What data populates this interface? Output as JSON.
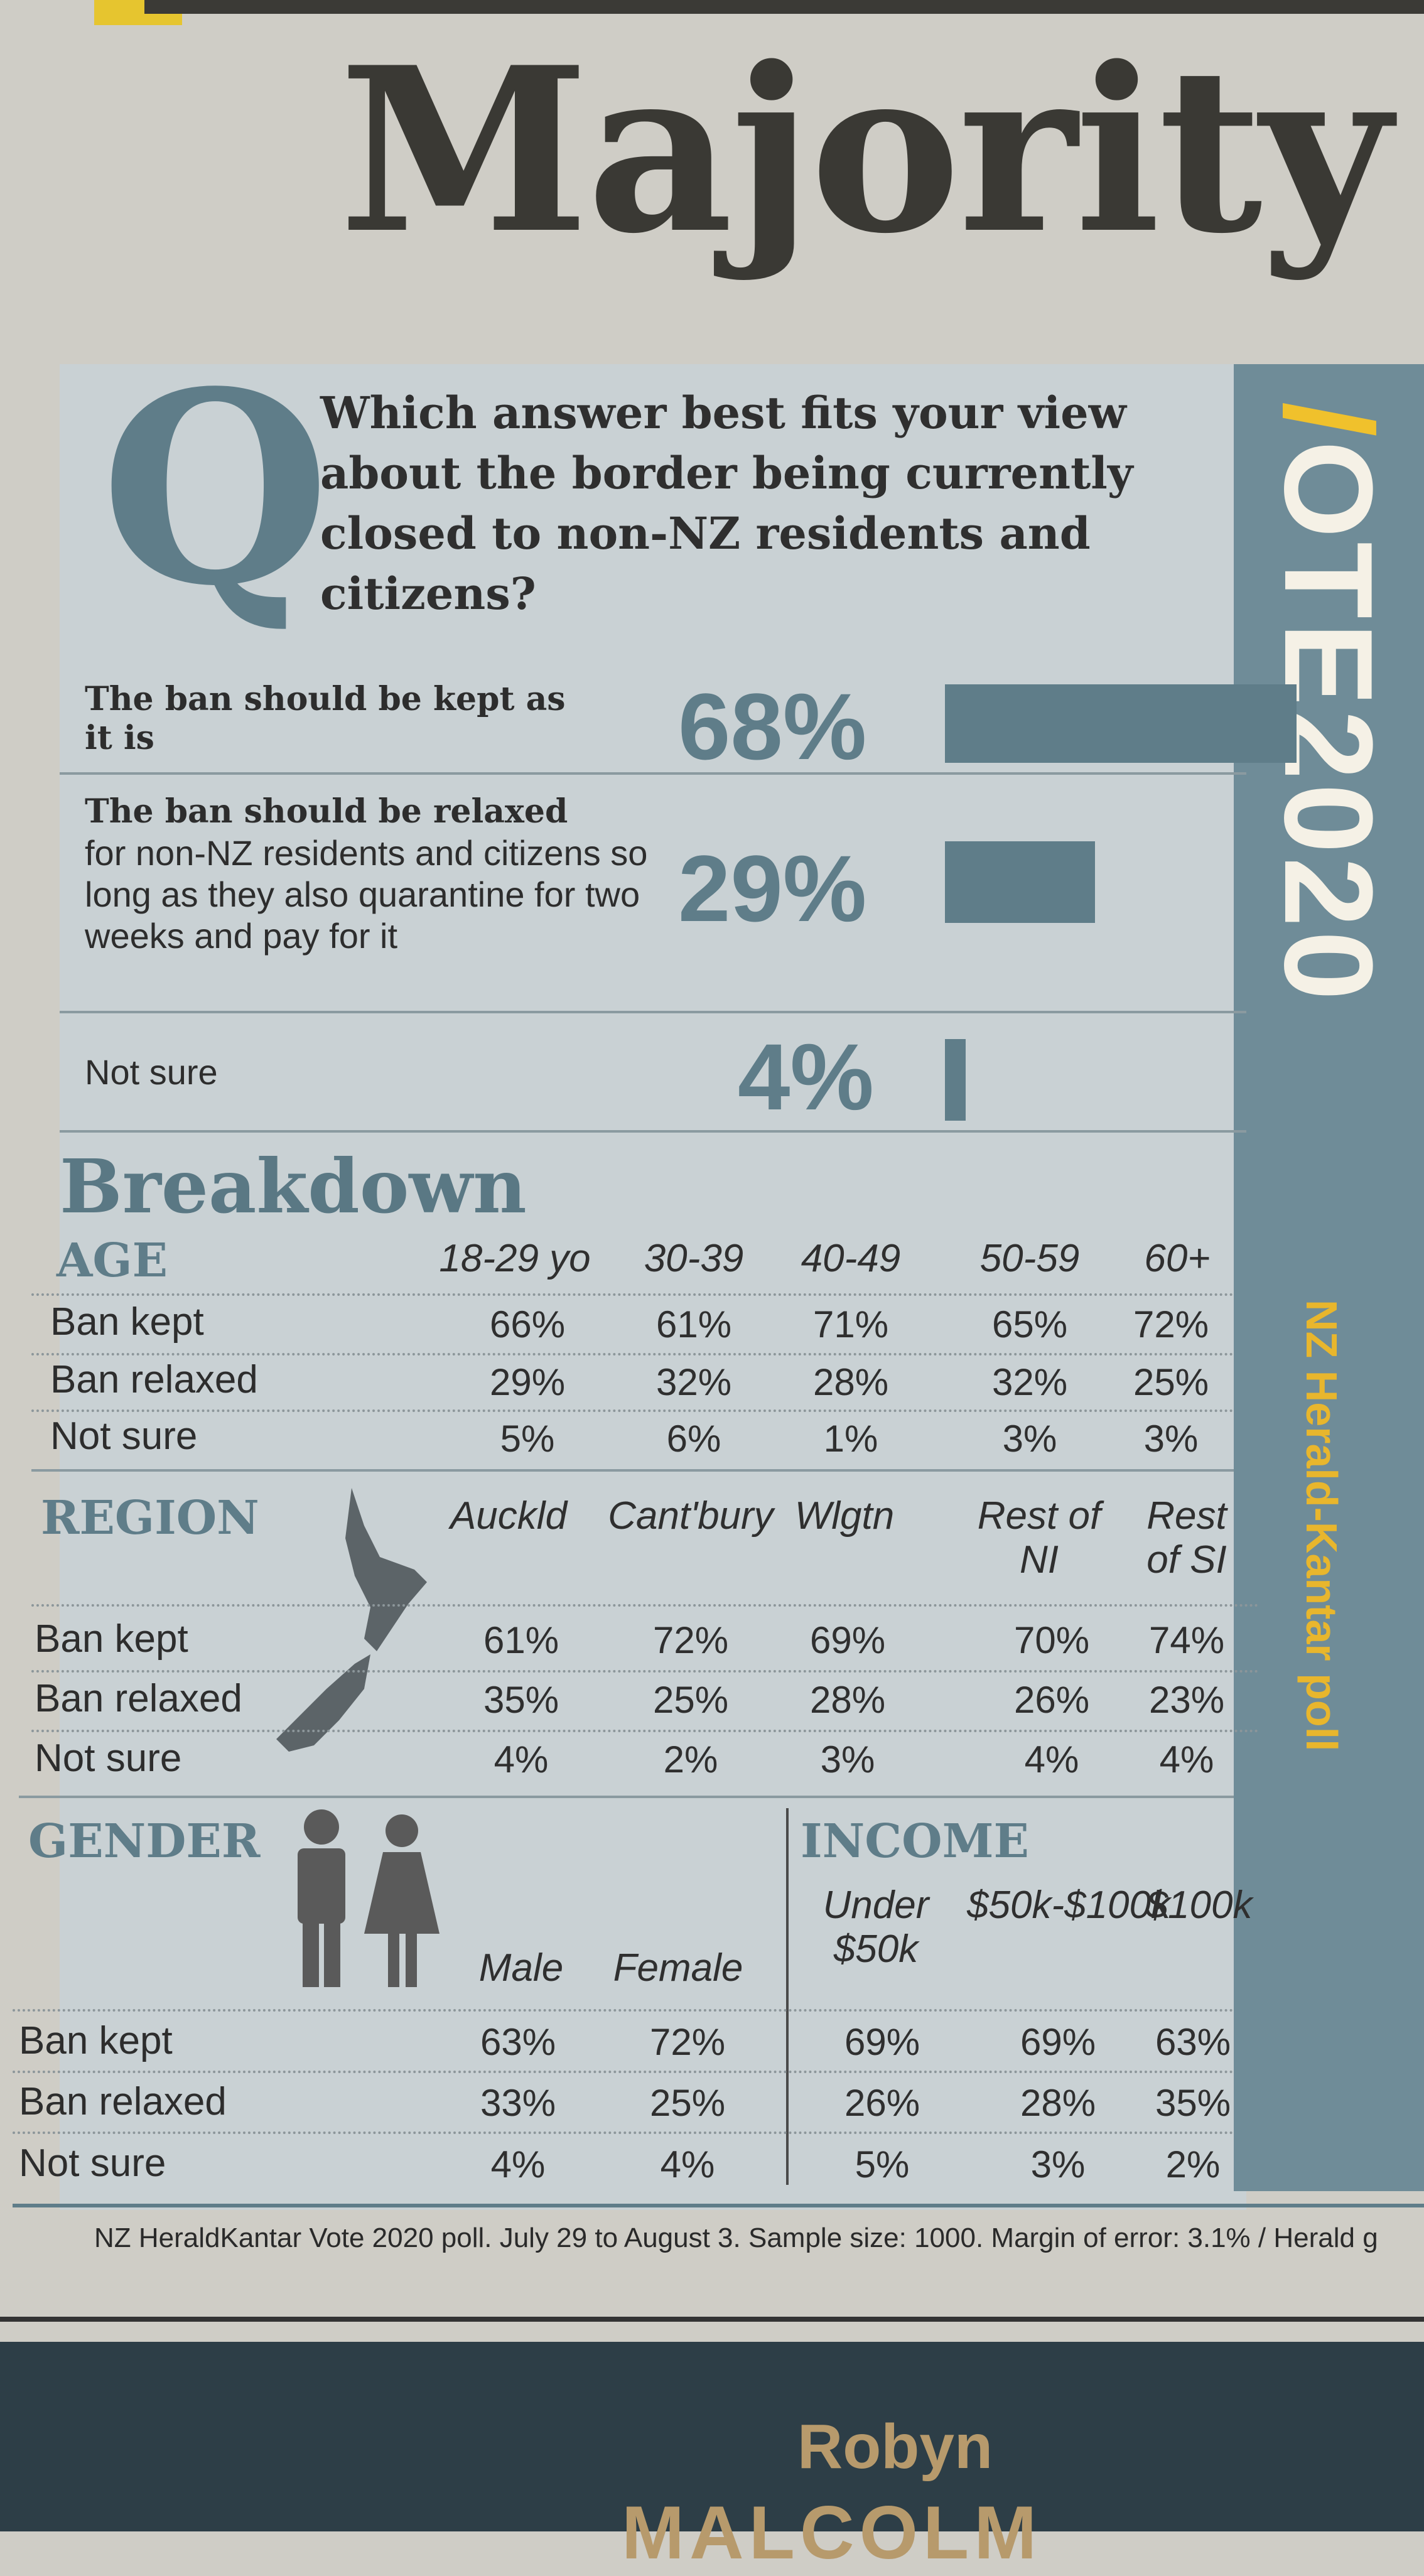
{
  "headline": "Majority",
  "question": {
    "letter": "Q",
    "text": "Which answer best fits your view about the border being currently closed to non-NZ residents and citizens?"
  },
  "answers": [
    {
      "bold": "The ban should be kept as it is",
      "rest": "",
      "pct": "68%",
      "value": 68
    },
    {
      "bold": "The ban should be relaxed",
      "rest": "for non-NZ residents and citizens so long as they also quarantine for two weeks and pay for it",
      "pct": "29%",
      "value": 29
    },
    {
      "bold": "",
      "rest": "Not sure",
      "pct": "4%",
      "value": 4
    }
  ],
  "sidebar": {
    "title_slash": "/",
    "title_rest": "OTE2020",
    "poll": "NZ Herald-Kantar poll"
  },
  "breakdown_title": "Breakdown",
  "row_labels": [
    "Ban kept",
    "Ban relaxed",
    "Not sure"
  ],
  "age": {
    "title": "AGE",
    "columns": [
      "18-29 yo",
      "30-39",
      "40-49",
      "50-59",
      "60+"
    ],
    "rows": [
      [
        "66%",
        "61%",
        "71%",
        "65%",
        "72%"
      ],
      [
        "29%",
        "32%",
        "28%",
        "32%",
        "25%"
      ],
      [
        "5%",
        "6%",
        "1%",
        "3%",
        "3%"
      ]
    ]
  },
  "region": {
    "title": "REGION",
    "columns": [
      "Auckld",
      "Cant'bury",
      "Wlgtn",
      "Rest of NI",
      "Rest of SI"
    ],
    "rows": [
      [
        "61%",
        "72%",
        "69%",
        "70%",
        "74%"
      ],
      [
        "35%",
        "25%",
        "28%",
        "26%",
        "23%"
      ],
      [
        "4%",
        "2%",
        "3%",
        "4%",
        "4%"
      ]
    ]
  },
  "gender": {
    "title": "GENDER",
    "columns": [
      "Male",
      "Female"
    ],
    "rows": [
      [
        "63%",
        "72%"
      ],
      [
        "33%",
        "25%"
      ],
      [
        "4%",
        "4%"
      ]
    ]
  },
  "income": {
    "title": "INCOME",
    "columns": [
      "Under $50k",
      "$50k-$100k",
      "$100k"
    ],
    "rows": [
      [
        "69%",
        "69%",
        "63%"
      ],
      [
        "26%",
        "28%",
        "35%"
      ],
      [
        "5%",
        "3%",
        "2%"
      ]
    ]
  },
  "footnote": "NZ HeraldKantar Vote 2020 poll. July 29 to August 3. Sample size: 1000. Margin of error: 3.1% / Herald g",
  "author": {
    "first": "Robyn",
    "last": "MALCOLM"
  },
  "colors": {
    "accent": "#5f7d89",
    "yellow": "#f0c12c",
    "panel": "#c9d1d4"
  }
}
